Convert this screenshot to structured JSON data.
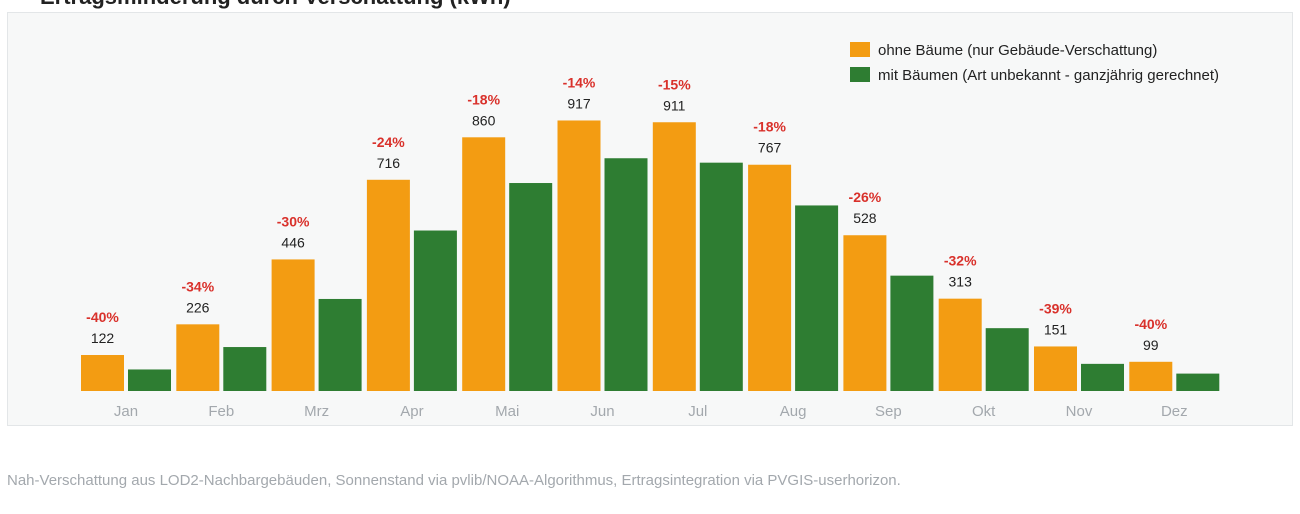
{
  "title": "Ertragsminderung durch Verschattung (kWh)",
  "footnote": "Nah-Verschattung aus LOD2-Nachbargebäuden, Sonnenstand via pvlib/NOAA-Algorithmus, Ertragsintegration via PVGIS-userhorizon.",
  "colors": {
    "ohne": "#f39c12",
    "mit": "#2e7d32",
    "percent": "#d9312b",
    "tick": "#a3a8ad"
  },
  "chart_data": {
    "type": "bar",
    "categories": [
      "Jan",
      "Feb",
      "Mrz",
      "Apr",
      "Mai",
      "Jun",
      "Jul",
      "Aug",
      "Sep",
      "Okt",
      "Nov",
      "Dez"
    ],
    "series": [
      {
        "name": "ohne Bäume (nur Gebäude-Verschattung)",
        "values": [
          122,
          226,
          446,
          716,
          860,
          917,
          911,
          767,
          528,
          313,
          151,
          99
        ]
      },
      {
        "name": "mit Bäumen (Art unbekannt - ganzjährig gerechnet)",
        "values": [
          73,
          149,
          312,
          544,
          705,
          789,
          774,
          629,
          391,
          213,
          92,
          59
        ]
      }
    ],
    "value_labels": [
      "122",
      "226",
      "446",
      "716",
      "860",
      "917",
      "911",
      "767",
      "528",
      "313",
      "151",
      "99"
    ],
    "percent_labels": [
      "-40%",
      "-34%",
      "-30%",
      "-24%",
      "-18%",
      "-14%",
      "-15%",
      "-18%",
      "-26%",
      "-32%",
      "-39%",
      "-40%"
    ],
    "ylim": [
      0,
      1000
    ],
    "legend_position": "top-right",
    "grid": false
  }
}
